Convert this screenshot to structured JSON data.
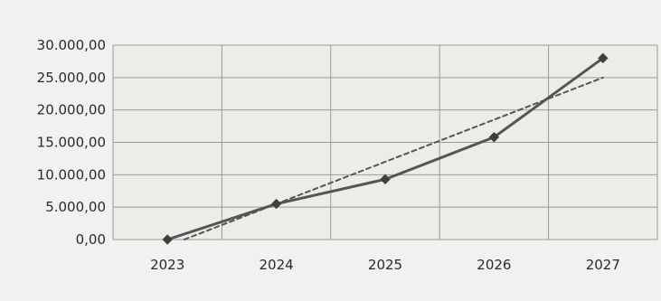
{
  "chart_data": {
    "type": "line",
    "x": [
      "2023",
      "2024",
      "2025",
      "2026",
      "2027"
    ],
    "y_ticks": [
      "0,00",
      "5.000,00",
      "10.000,00",
      "15.000,00",
      "20.000,00",
      "25.000,00",
      "30.000,00"
    ],
    "ylim": [
      0,
      30000
    ],
    "grid": true,
    "series": [
      {
        "values": [
          0,
          5500,
          9300,
          15800,
          28000
        ],
        "style": "solid",
        "marker": "diamond",
        "color": "#555555"
      },
      {
        "values": [
          -1000,
          5500,
          12000,
          18500,
          25000
        ],
        "style": "dashed",
        "marker": "none",
        "color": "#555555",
        "kind": "trendline"
      }
    ],
    "title": "",
    "xlabel": "",
    "ylabel": ""
  }
}
